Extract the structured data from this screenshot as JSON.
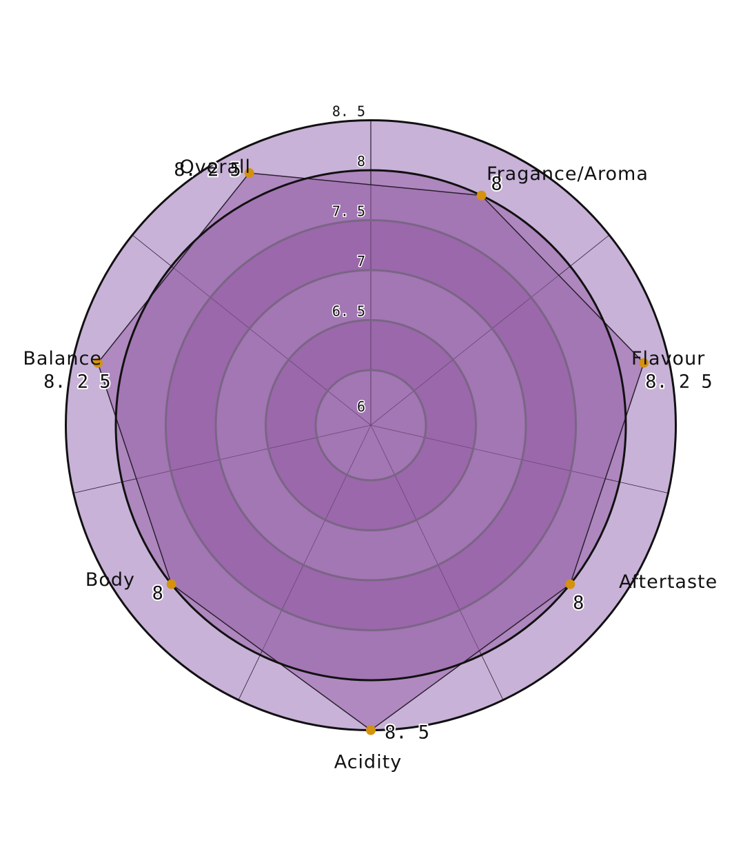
{
  "chart_data": {
    "type": "radar",
    "title": "",
    "categories": [
      "Fragance/Aroma",
      "Flavour",
      "Aftertaste",
      "Acidity",
      "Body",
      "Balance",
      "Overall"
    ],
    "values": [
      8,
      8.25,
      8,
      8.5,
      8,
      8.25,
      8.25
    ],
    "value_labels": [
      "8",
      "8.25",
      "8",
      "8.5",
      "8",
      "8.25",
      "8.25"
    ],
    "radial_range": [
      6,
      8.5
    ],
    "ticks": [
      "6",
      "6.5",
      "7",
      "7.5",
      "8",
      "8.5"
    ],
    "grid": true,
    "legend": "none",
    "colors": {
      "band_dark": "#9b68ab",
      "band_medium": "#ad87be",
      "band_light": "#c8b2d8",
      "polygon_fill": "#9b68ab",
      "marker": "#d4920e",
      "ring_stroke": "#111111",
      "inner_ring_stroke": "#7a6585"
    }
  }
}
